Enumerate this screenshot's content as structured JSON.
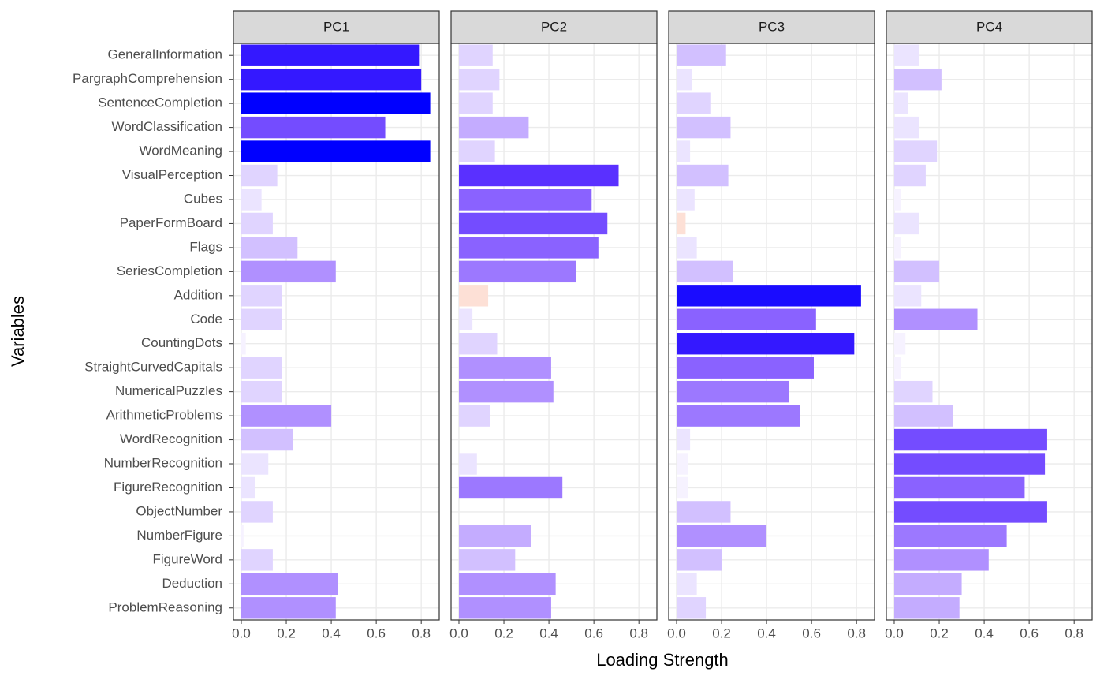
{
  "chart_data": {
    "type": "bar",
    "orientation": "horizontal",
    "x_label": "Loading Strength",
    "y_label": "Variables",
    "categories": [
      "GeneralInformation",
      "PargraphComprehension",
      "SentenceCompletion",
      "WordClassification",
      "WordMeaning",
      "VisualPerception",
      "Cubes",
      "PaperFormBoard",
      "Flags",
      "SeriesCompletion",
      "Addition",
      "Code",
      "CountingDots",
      "StraightCurvedCapitals",
      "NumericalPuzzles",
      "ArithmeticProblems",
      "WordRecognition",
      "NumberRecognition",
      "FigureRecognition",
      "ObjectNumber",
      "NumberFigure",
      "FigureWord",
      "Deduction",
      "ProblemReasoning"
    ],
    "xlim": [
      -0.035,
      0.88
    ],
    "xticks": [
      {
        "value": 0,
        "label": "0.0"
      },
      0.2,
      0.4,
      0.6,
      0.8
    ],
    "grid": true,
    "series": [
      {
        "name": "PC1",
        "values": [
          0.79,
          0.8,
          0.84,
          0.64,
          0.84,
          0.16,
          0.09,
          0.14,
          0.25,
          0.42,
          0.18,
          0.18,
          0.02,
          0.18,
          0.18,
          0.4,
          0.23,
          0.12,
          0.06,
          0.14,
          0.01,
          0.14,
          0.43,
          0.42
        ],
        "colors": [
          "#3418ff",
          "#3418ff",
          "#0000ff",
          "#744cff",
          "#0000ff",
          "#e0d4ff",
          "#ebe4ff",
          "#e0d4ff",
          "#d2c0ff",
          "#b090ff",
          "#e0d4ff",
          "#e0d4ff",
          "#f6f2ff",
          "#e0d4ff",
          "#e0d4ff",
          "#b090ff",
          "#d2c0ff",
          "#ebe4ff",
          "#ebe4ff",
          "#e0d4ff",
          "#f6f2ff",
          "#e0d4ff",
          "#b090ff",
          "#b090ff"
        ]
      },
      {
        "name": "PC2",
        "values": [
          0.15,
          0.18,
          0.15,
          0.31,
          0.16,
          0.71,
          0.59,
          0.66,
          0.62,
          0.52,
          0.13,
          0.06,
          0.17,
          0.41,
          0.42,
          0.14,
          0.0,
          0.08,
          0.46,
          0.0,
          0.32,
          0.25,
          0.43,
          0.41
        ],
        "colors": [
          "#e0d4ff",
          "#e0d4ff",
          "#e0d4ff",
          "#c4acff",
          "#e0d4ff",
          "#5a30ff",
          "#8a62ff",
          "#744cff",
          "#8a62ff",
          "#9c78ff",
          "#fde0d6",
          "#ebe4ff",
          "#e0d4ff",
          "#b090ff",
          "#b090ff",
          "#e0d4ff",
          "#f6f2ff",
          "#ebe4ff",
          "#9c78ff",
          "#f6f2ff",
          "#c4acff",
          "#d2c0ff",
          "#b090ff",
          "#b090ff"
        ]
      },
      {
        "name": "PC3",
        "values": [
          0.22,
          0.07,
          0.15,
          0.24,
          0.06,
          0.23,
          0.08,
          0.04,
          0.09,
          0.25,
          0.82,
          0.62,
          0.79,
          0.61,
          0.5,
          0.55,
          0.06,
          0.05,
          0.05,
          0.24,
          0.4,
          0.2,
          0.09,
          0.13
        ],
        "colors": [
          "#d2c0ff",
          "#ebe4ff",
          "#e0d4ff",
          "#d2c0ff",
          "#ebe4ff",
          "#d2c0ff",
          "#ebe4ff",
          "#fde0d6",
          "#ebe4ff",
          "#d2c0ff",
          "#1a0cff",
          "#8a62ff",
          "#3418ff",
          "#8a62ff",
          "#9c78ff",
          "#9c78ff",
          "#ebe4ff",
          "#f6f2ff",
          "#f6f2ff",
          "#d2c0ff",
          "#b090ff",
          "#d2c0ff",
          "#ebe4ff",
          "#e0d4ff"
        ]
      },
      {
        "name": "PC4",
        "values": [
          0.11,
          0.21,
          0.06,
          0.11,
          0.19,
          0.14,
          0.03,
          0.11,
          0.03,
          0.2,
          0.12,
          0.37,
          0.05,
          0.03,
          0.17,
          0.26,
          0.68,
          0.67,
          0.58,
          0.68,
          0.5,
          0.42,
          0.3,
          0.29
        ],
        "colors": [
          "#ebe4ff",
          "#d2c0ff",
          "#ebe4ff",
          "#ebe4ff",
          "#e0d4ff",
          "#e0d4ff",
          "#f6f2ff",
          "#ebe4ff",
          "#f6f2ff",
          "#d2c0ff",
          "#ebe4ff",
          "#b090ff",
          "#f6f2ff",
          "#f6f2ff",
          "#e0d4ff",
          "#d2c0ff",
          "#744cff",
          "#744cff",
          "#8a62ff",
          "#744cff",
          "#9c78ff",
          "#b090ff",
          "#c4acff",
          "#c4acff"
        ]
      }
    ]
  }
}
